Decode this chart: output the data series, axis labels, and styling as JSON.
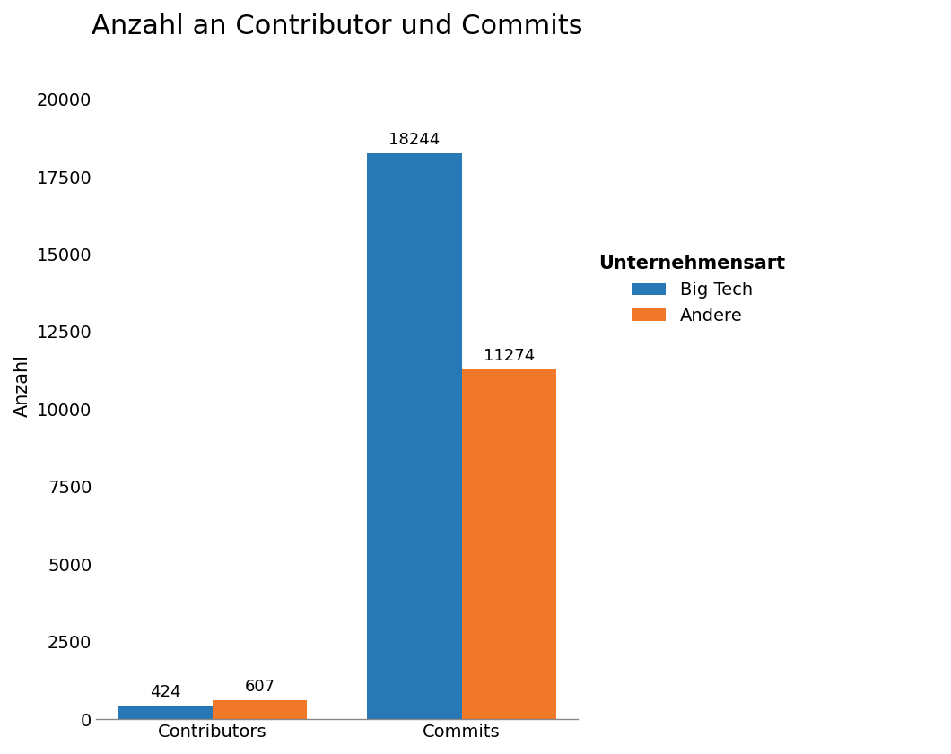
{
  "title": "Anzahl an Contributor und Commits",
  "categories": [
    "Contributors",
    "Commits"
  ],
  "big_tech_values": [
    424,
    18244
  ],
  "andere_values": [
    607,
    11274
  ],
  "big_tech_label": "Big Tech",
  "andere_label": "Andere",
  "big_tech_color": "#2878b5",
  "andere_color": "#f07828",
  "ylabel": "Anzahl",
  "legend_title": "Unternehmensart",
  "ylim": [
    0,
    21500
  ],
  "yticks": [
    0,
    2500,
    5000,
    7500,
    10000,
    12500,
    15000,
    17500,
    20000
  ],
  "bar_width": 0.38,
  "annotation_fontsize": 13,
  "title_fontsize": 22,
  "label_fontsize": 15,
  "tick_fontsize": 14,
  "legend_fontsize": 14,
  "background_color": "#ffffff"
}
